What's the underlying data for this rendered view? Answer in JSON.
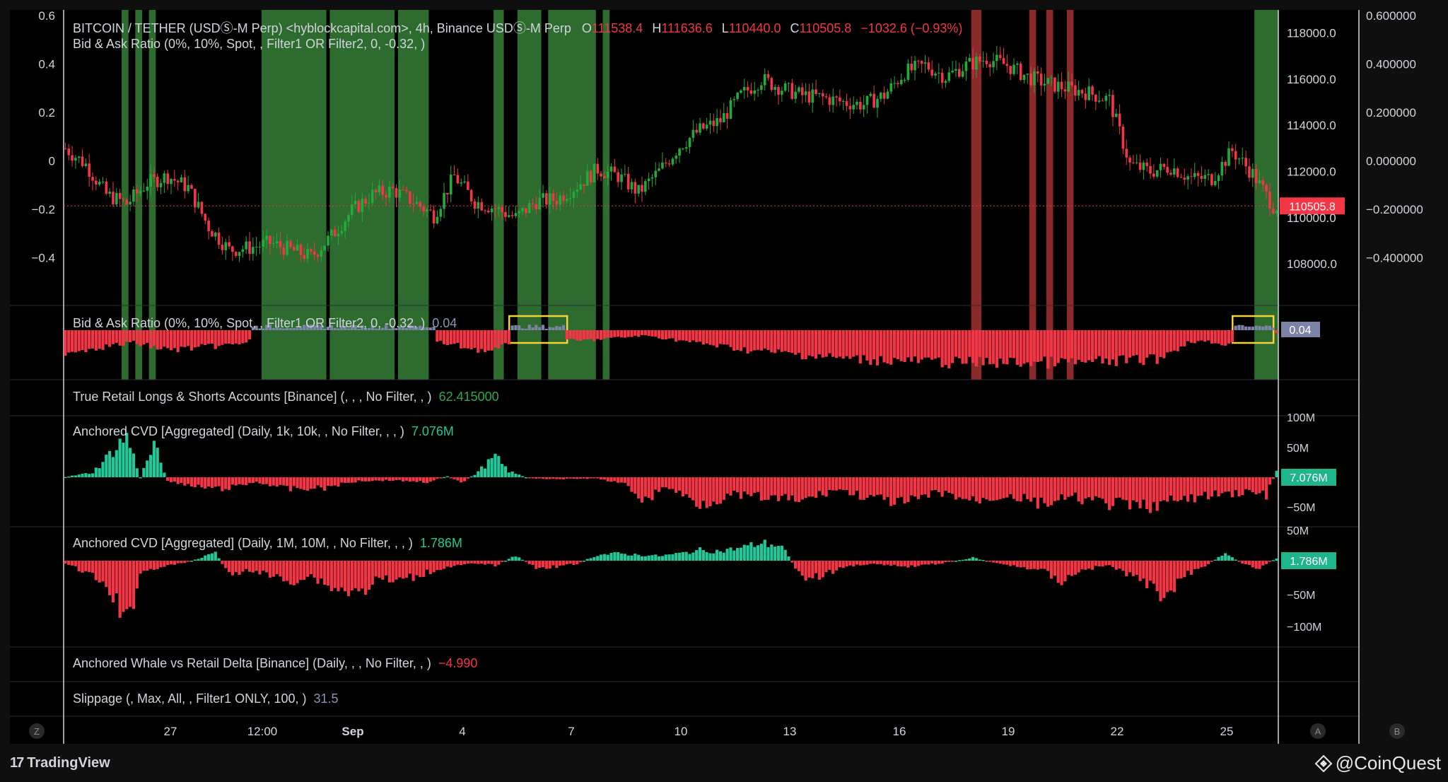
{
  "header": {
    "symbol_line": "BITCOIN / TETHER (USDⓈ-M Perp) <hyblockcapital.com>, 4h, Binance USDⓈ-M Perp",
    "o_label": "O",
    "o_value": "111538.4",
    "h_label": "H",
    "h_value": "111636.6",
    "l_label": "L",
    "l_value": "110440.0",
    "c_label": "C",
    "c_value": "110505.8",
    "change": "−1032.6 (−0.93%)",
    "bid_ask_overlay": "Bid & Ask Ratio (0%, 10%, Spot, , Filter1 OR Filter2, 0, -0.32, )"
  },
  "panes": {
    "bid_ask": {
      "title": "Bid & Ask Ratio (0%, 10%, Spot, , Filter1 OR Filter2, 0, -0.32, )",
      "value": "0.04",
      "badge": "0.04"
    },
    "retail": {
      "title": "True Retail Longs & Shorts Accounts [Binance] (, , , No Filter, , )",
      "value": "62.415000"
    },
    "cvd1": {
      "title": "Anchored CVD [Aggregated] (Daily, 1k, 10k, , No Filter, , , )",
      "value": "7.076M",
      "badge": "7.076M"
    },
    "cvd2": {
      "title": "Anchored CVD [Aggregated] (Daily, 1M, 10M, , No Filter, , , )",
      "value": "1.786M",
      "badge": "1.786M"
    },
    "whale": {
      "title": "Anchored Whale vs Retail Delta [Binance] (Daily, , , No Filter, , )",
      "value": "−4.990"
    },
    "slippage": {
      "title": "Slippage (, Max, All, , Filter1 ONLY, 100, )",
      "value": "31.5"
    }
  },
  "footer": {
    "tradingview": "TradingView",
    "tv_mark": "17",
    "coinquest": "@CoinQuest"
  },
  "buttons": {
    "z": "Z",
    "a": "A",
    "b": "B"
  },
  "colors": {
    "up": "#22ab3a",
    "down": "#f23645",
    "teal": "#22c79a",
    "green_band": "#2e6b2e",
    "red_band": "#8b2a2a",
    "highlight": "#f2d33a",
    "badge_grey": "#7b83a6"
  },
  "chart_data": [
    {
      "type": "candlestick",
      "name": "BITCOIN / TETHER 4h",
      "x_ticks": [
        "27",
        "12:00",
        "Sep",
        "4",
        "7",
        "10",
        "13",
        "16",
        "19",
        "22",
        "25"
      ],
      "y_right_ticks": [
        "118000.0",
        "116000.0",
        "114000.0",
        "112000.0",
        "110000.0",
        "108000.0"
      ],
      "y_far_right_ticks": [
        "0.600000",
        "0.400000",
        "0.200000",
        "0.000000",
        "−0.200000",
        "−0.400000"
      ],
      "y_left_ticks": [
        "0.6",
        "0.4",
        "0.2",
        "0",
        "−0.2",
        "−0.4"
      ],
      "ylim": [
        106500,
        119000
      ],
      "last_price_label": "110505.8",
      "last_price": 110505.8,
      "close_path": [
        [
          0,
          113000
        ],
        [
          6,
          112300
        ],
        [
          12,
          111000
        ],
        [
          18,
          110600
        ],
        [
          24,
          111500
        ],
        [
          30,
          111800
        ],
        [
          36,
          111300
        ],
        [
          42,
          109600
        ],
        [
          48,
          108600
        ],
        [
          54,
          108700
        ],
        [
          60,
          108900
        ],
        [
          66,
          108600
        ],
        [
          72,
          108300
        ],
        [
          78,
          109200
        ],
        [
          84,
          110300
        ],
        [
          90,
          111000
        ],
        [
          96,
          111200
        ],
        [
          102,
          110700
        ],
        [
          108,
          110100
        ],
        [
          114,
          111800
        ],
        [
          120,
          110700
        ],
        [
          126,
          110400
        ],
        [
          132,
          110000
        ],
        [
          138,
          110700
        ],
        [
          144,
          110800
        ],
        [
          150,
          111400
        ],
        [
          156,
          112100
        ],
        [
          162,
          111800
        ],
        [
          168,
          111100
        ],
        [
          174,
          112000
        ],
        [
          180,
          113100
        ],
        [
          186,
          113800
        ],
        [
          192,
          114200
        ],
        [
          198,
          115300
        ],
        [
          204,
          116000
        ],
        [
          210,
          115600
        ],
        [
          216,
          115300
        ],
        [
          222,
          115200
        ],
        [
          228,
          115000
        ],
        [
          234,
          114900
        ],
        [
          240,
          115300
        ],
        [
          246,
          116300
        ],
        [
          252,
          116600
        ],
        [
          258,
          116100
        ],
        [
          264,
          116600
        ],
        [
          270,
          116900
        ],
        [
          276,
          116600
        ],
        [
          282,
          116100
        ],
        [
          288,
          115800
        ],
        [
          294,
          115600
        ],
        [
          300,
          115400
        ],
        [
          306,
          115100
        ],
        [
          312,
          112300
        ],
        [
          318,
          112000
        ],
        [
          324,
          112200
        ],
        [
          330,
          111700
        ],
        [
          336,
          111700
        ],
        [
          342,
          112900
        ],
        [
          348,
          111900
        ],
        [
          354,
          110500
        ]
      ],
      "green_bands": [
        [
          17,
          18
        ],
        [
          21,
          22
        ],
        [
          25,
          26
        ],
        [
          58,
          76
        ],
        [
          78,
          96
        ],
        [
          98,
          106
        ],
        [
          126,
          128
        ],
        [
          133,
          139
        ],
        [
          142,
          155
        ],
        [
          158,
          159
        ],
        [
          349,
          355
        ]
      ],
      "red_bands": [
        [
          266,
          268
        ],
        [
          283,
          284
        ],
        [
          288,
          289
        ],
        [
          294,
          295
        ]
      ],
      "highlight_boxes": [
        [
          131,
          146
        ],
        [
          343,
          353
        ]
      ]
    },
    {
      "type": "bar",
      "name": "Bid & Ask Ratio",
      "value": 0.04,
      "grey_segments": [
        [
          55,
          108
        ],
        [
          131,
          146
        ],
        [
          343,
          354
        ]
      ],
      "red_profile": [
        [
          0,
          0.6
        ],
        [
          20,
          0.35
        ],
        [
          30,
          0.55
        ],
        [
          50,
          0.4
        ],
        [
          60,
          0.15
        ],
        [
          110,
          0.35
        ],
        [
          125,
          0.6
        ],
        [
          135,
          0.2
        ],
        [
          150,
          0.3
        ],
        [
          170,
          0.15
        ],
        [
          200,
          0.55
        ],
        [
          230,
          0.8
        ],
        [
          260,
          0.9
        ],
        [
          300,
          0.9
        ],
        [
          320,
          0.8
        ],
        [
          330,
          0.3
        ],
        [
          343,
          0.4
        ],
        [
          355,
          0.1
        ]
      ]
    },
    {
      "type": "bar",
      "name": "Anchored CVD 1k-10k",
      "value": "7.076M",
      "y_ticks": [
        "100M",
        "50M",
        "−50M"
      ],
      "ylim": [
        -100,
        100
      ],
      "segments": [
        [
          0,
          0.5
        ],
        [
          8,
          8
        ],
        [
          14,
          45
        ],
        [
          18,
          70
        ],
        [
          22,
          0
        ],
        [
          26,
          55
        ],
        [
          30,
          -5
        ],
        [
          36,
          -15
        ],
        [
          46,
          -20
        ],
        [
          56,
          -8
        ],
        [
          66,
          -20
        ],
        [
          76,
          -18
        ],
        [
          86,
          -6
        ],
        [
          96,
          -5
        ],
        [
          106,
          -8
        ],
        [
          112,
          2
        ],
        [
          116,
          -10
        ],
        [
          120,
          5
        ],
        [
          126,
          35
        ],
        [
          130,
          10
        ],
        [
          136,
          -2
        ],
        [
          146,
          -3
        ],
        [
          156,
          -2
        ],
        [
          164,
          -12
        ],
        [
          170,
          -40
        ],
        [
          176,
          -15
        ],
        [
          186,
          -45
        ],
        [
          196,
          -30
        ],
        [
          206,
          -35
        ],
        [
          216,
          -40
        ],
        [
          226,
          -20
        ],
        [
          236,
          -35
        ],
        [
          246,
          -45
        ],
        [
          256,
          -25
        ],
        [
          266,
          -40
        ],
        [
          276,
          -30
        ],
        [
          286,
          -45
        ],
        [
          296,
          -35
        ],
        [
          306,
          -45
        ],
        [
          316,
          -50
        ],
        [
          326,
          -40
        ],
        [
          336,
          -30
        ],
        [
          346,
          -25
        ],
        [
          352,
          -30
        ],
        [
          355,
          10
        ]
      ]
    },
    {
      "type": "bar",
      "name": "Anchored CVD 1M-10M",
      "value": "1.786M",
      "y_ticks": [
        "50M",
        "−50M",
        "−100M"
      ],
      "ylim": [
        -120,
        60
      ],
      "segments": [
        [
          0,
          -5
        ],
        [
          6,
          -20
        ],
        [
          10,
          -35
        ],
        [
          14,
          -60
        ],
        [
          18,
          -110
        ],
        [
          22,
          -20
        ],
        [
          28,
          -10
        ],
        [
          34,
          -5
        ],
        [
          40,
          5
        ],
        [
          44,
          15
        ],
        [
          48,
          -25
        ],
        [
          54,
          -15
        ],
        [
          60,
          -25
        ],
        [
          66,
          -35
        ],
        [
          72,
          -25
        ],
        [
          78,
          -45
        ],
        [
          86,
          -55
        ],
        [
          92,
          -30
        ],
        [
          98,
          -35
        ],
        [
          106,
          -20
        ],
        [
          112,
          -10
        ],
        [
          120,
          -5
        ],
        [
          126,
          -8
        ],
        [
          132,
          8
        ],
        [
          138,
          -12
        ],
        [
          144,
          -10
        ],
        [
          150,
          -5
        ],
        [
          156,
          10
        ],
        [
          162,
          12
        ],
        [
          168,
          10
        ],
        [
          174,
          8
        ],
        [
          180,
          12
        ],
        [
          186,
          18
        ],
        [
          192,
          16
        ],
        [
          198,
          22
        ],
        [
          204,
          30
        ],
        [
          210,
          25
        ],
        [
          216,
          -30
        ],
        [
          222,
          -25
        ],
        [
          230,
          -8
        ],
        [
          238,
          -5
        ],
        [
          246,
          -10
        ],
        [
          256,
          -5
        ],
        [
          266,
          5
        ],
        [
          276,
          -8
        ],
        [
          286,
          -15
        ],
        [
          292,
          -35
        ],
        [
          298,
          -15
        ],
        [
          306,
          -8
        ],
        [
          316,
          -35
        ],
        [
          322,
          -60
        ],
        [
          328,
          -25
        ],
        [
          334,
          -8
        ],
        [
          340,
          12
        ],
        [
          346,
          -8
        ],
        [
          350,
          -12
        ],
        [
          355,
          4
        ]
      ]
    }
  ]
}
